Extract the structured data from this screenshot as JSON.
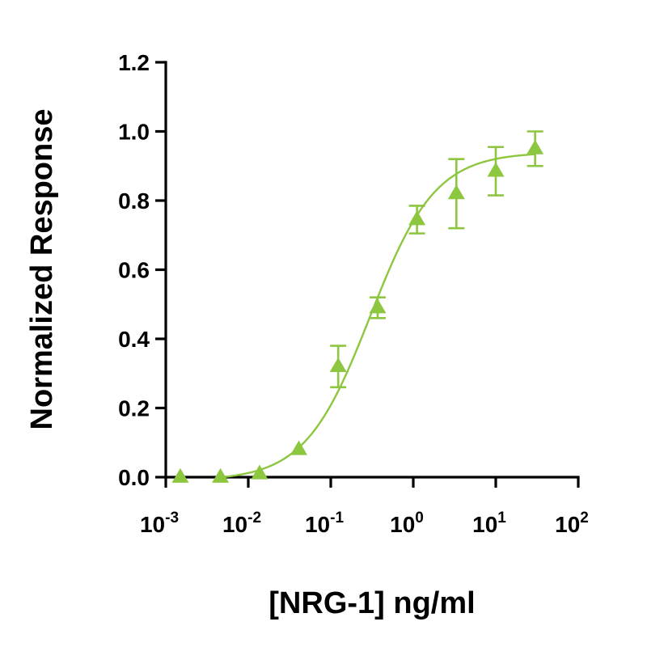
{
  "chart_data": {
    "type": "scatter",
    "xlabel": "[NRG-1] ng/ml",
    "ylabel": "Normalized Response",
    "x_scale": "log10",
    "xlim": [
      0.001,
      100
    ],
    "ylim": [
      0,
      1.2
    ],
    "x_ticks": [
      {
        "base": "10",
        "exp": "-3",
        "value": 0.001
      },
      {
        "base": "10",
        "exp": "-2",
        "value": 0.01
      },
      {
        "base": "10",
        "exp": "-1",
        "value": 0.1
      },
      {
        "base": "10",
        "exp": "0",
        "value": 1
      },
      {
        "base": "10",
        "exp": "1",
        "value": 10
      },
      {
        "base": "10",
        "exp": "2",
        "value": 100
      }
    ],
    "y_ticks": [
      "0.0",
      "0.2",
      "0.4",
      "0.6",
      "0.8",
      "1.0",
      "1.2"
    ],
    "grid": false,
    "legend": "none",
    "color": "#8dc63f",
    "marker": "triangle",
    "series": [
      {
        "x": [
          0.0015,
          0.0046,
          0.0137,
          0.041,
          0.123,
          0.37,
          1.11,
          3.33,
          10,
          30
        ],
        "y": [
          0.0,
          0.0,
          0.01,
          0.08,
          0.32,
          0.49,
          0.745,
          0.82,
          0.885,
          0.95
        ],
        "error": [
          0,
          0,
          0,
          0,
          0.06,
          0.03,
          0.04,
          0.1,
          0.07,
          0.05
        ]
      }
    ],
    "fit": {
      "model": "four-parameter logistic",
      "bottom": -0.01,
      "top": 0.94,
      "ec50": 0.3,
      "hill": 1.1,
      "x_range": [
        0.005,
        30
      ]
    }
  }
}
